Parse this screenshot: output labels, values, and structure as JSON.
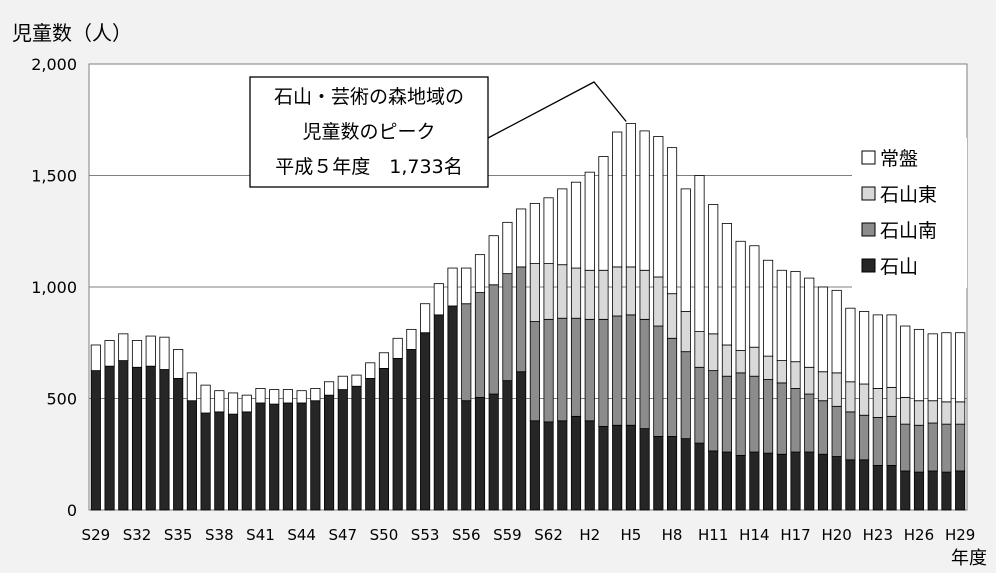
{
  "chart_data": {
    "type": "bar",
    "stacked": true,
    "ylabel": "児童数（人）",
    "xlabel": "年度",
    "ylim": [
      0,
      2000
    ],
    "yticks": [
      0,
      500,
      1000,
      1500,
      2000
    ],
    "ytick_labels": [
      "0",
      "500",
      "1,000",
      "1,500",
      "2,000"
    ],
    "grid": true,
    "legend_position": "right",
    "categories": [
      "S29",
      "S30",
      "S31",
      "S32",
      "S33",
      "S34",
      "S35",
      "S36",
      "S37",
      "S38",
      "S39",
      "S40",
      "S41",
      "S42",
      "S43",
      "S44",
      "S45",
      "S46",
      "S47",
      "S48",
      "S49",
      "S50",
      "S51",
      "S52",
      "S53",
      "S54",
      "S55",
      "S56",
      "S57",
      "S58",
      "S59",
      "S60",
      "S61",
      "S62",
      "S63",
      "H1",
      "H2",
      "H3",
      "H4",
      "H5",
      "H6",
      "H7",
      "H8",
      "H9",
      "H10",
      "H11",
      "H12",
      "H13",
      "H14",
      "H15",
      "H16",
      "H17",
      "H18",
      "H19",
      "H20",
      "H21",
      "H22",
      "H23",
      "H24",
      "H25",
      "H26",
      "H27",
      "H28",
      "H29"
    ],
    "tick_labels": [
      "S29",
      "S32",
      "S35",
      "S38",
      "S41",
      "S44",
      "S47",
      "S50",
      "S53",
      "S56",
      "S59",
      "S62",
      "H2",
      "H5",
      "H8",
      "H11",
      "H14",
      "H17",
      "H20",
      "H23",
      "H26",
      "H29"
    ],
    "series": [
      {
        "name": "石山",
        "color": "#262626",
        "values": [
          625,
          645,
          670,
          640,
          645,
          630,
          590,
          490,
          435,
          440,
          430,
          440,
          480,
          475,
          480,
          480,
          490,
          515,
          540,
          555,
          590,
          635,
          680,
          720,
          795,
          875,
          915,
          490,
          505,
          520,
          580,
          620,
          400,
          395,
          400,
          420,
          400,
          375,
          380,
          380,
          365,
          330,
          330,
          320,
          300,
          265,
          260,
          245,
          260,
          255,
          250,
          260,
          260,
          250,
          240,
          225,
          225,
          200,
          200,
          175,
          170,
          175,
          170,
          175
        ]
      },
      {
        "name": "石山南",
        "color": "#8c8c8c",
        "values": [
          0,
          0,
          0,
          0,
          0,
          0,
          0,
          0,
          0,
          0,
          0,
          0,
          0,
          0,
          0,
          0,
          0,
          0,
          0,
          0,
          0,
          0,
          0,
          0,
          0,
          0,
          0,
          435,
          470,
          490,
          480,
          470,
          445,
          460,
          460,
          440,
          455,
          480,
          490,
          495,
          490,
          495,
          440,
          390,
          340,
          360,
          340,
          370,
          340,
          330,
          320,
          285,
          260,
          240,
          225,
          215,
          200,
          215,
          220,
          210,
          210,
          215,
          215,
          210
        ]
      },
      {
        "name": "石山東",
        "color": "#d9d9d9",
        "values": [
          0,
          0,
          0,
          0,
          0,
          0,
          0,
          0,
          0,
          0,
          0,
          0,
          0,
          0,
          0,
          0,
          0,
          0,
          0,
          0,
          0,
          0,
          0,
          0,
          0,
          0,
          0,
          0,
          0,
          0,
          0,
          0,
          260,
          250,
          240,
          225,
          220,
          220,
          220,
          215,
          220,
          220,
          200,
          180,
          160,
          165,
          140,
          100,
          130,
          105,
          100,
          120,
          120,
          130,
          150,
          135,
          140,
          130,
          130,
          120,
          110,
          100,
          100,
          100
        ]
      },
      {
        "name": "常盤",
        "color": "#ffffff",
        "values": [
          115,
          115,
          120,
          120,
          135,
          145,
          130,
          125,
          125,
          95,
          95,
          75,
          65,
          65,
          60,
          55,
          55,
          60,
          60,
          50,
          70,
          70,
          90,
          90,
          130,
          140,
          170,
          160,
          170,
          220,
          230,
          260,
          270,
          295,
          340,
          385,
          440,
          510,
          605,
          643,
          625,
          630,
          655,
          550,
          700,
          580,
          545,
          490,
          455,
          430,
          405,
          405,
          400,
          380,
          370,
          330,
          325,
          330,
          325,
          320,
          320,
          300,
          310,
          310
        ]
      }
    ],
    "annotation": {
      "lines": [
        "石山・芸術の森地域の",
        "児童数のピーク",
        "平成５年度　1,733名"
      ],
      "target_category": "H5"
    }
  }
}
